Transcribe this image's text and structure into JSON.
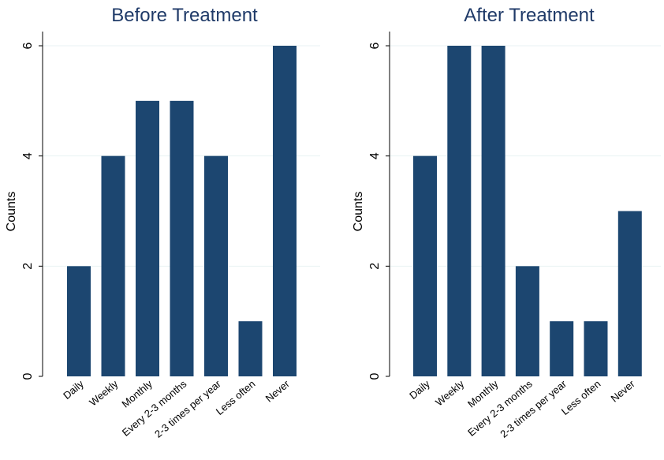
{
  "chart_data": [
    {
      "type": "bar",
      "title": "Before Treatment",
      "ylabel": "Counts",
      "xlabel": "",
      "categories": [
        "Daily",
        "Weekly",
        "Monthly",
        "Every 2-3 months",
        "2-3 times per year",
        "Less often",
        "Never"
      ],
      "values": [
        2,
        4,
        5,
        5,
        4,
        1,
        6
      ],
      "ylim": [
        0,
        6
      ],
      "yticks": [
        0,
        2,
        4,
        6
      ],
      "grid": true,
      "bar_color": "#1c4670"
    },
    {
      "type": "bar",
      "title": "After Treatment",
      "ylabel": "Counts",
      "xlabel": "",
      "categories": [
        "Daily",
        "Weekly",
        "Monthly",
        "Every 2-3 months",
        "2-3 times per year",
        "Less often",
        "Never"
      ],
      "values": [
        4,
        6,
        6,
        2,
        1,
        1,
        3
      ],
      "ylim": [
        0,
        6
      ],
      "yticks": [
        0,
        2,
        4,
        6
      ],
      "grid": true,
      "bar_color": "#1c4670"
    }
  ],
  "colors": {
    "title": "#1f3a68",
    "grid": "#eaf2f3",
    "axis": "#000000"
  }
}
